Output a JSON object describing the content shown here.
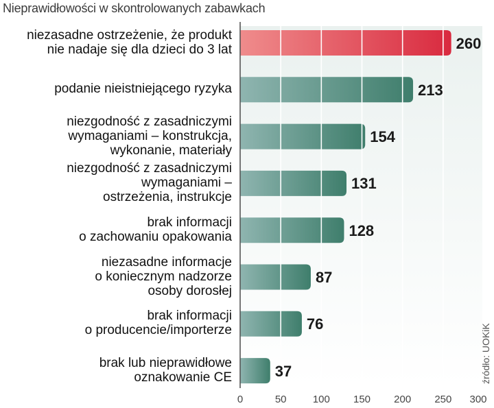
{
  "chart_data": {
    "type": "bar",
    "orientation": "horizontal",
    "title": "Nieprawidłowości w skontrolowanych zabawkach",
    "categories": [
      [
        "niezasadne ostrzeżenie, że produkt",
        "nie nadaje się dla dzieci do 3 lat"
      ],
      [
        "podanie nieistniejącego ryzyka"
      ],
      [
        "niezgodność z zasadniczymi",
        "wymaganiami – konstrukcja,",
        "wykonanie, materiały"
      ],
      [
        "niezgodność z zasadniczymi",
        "wymaganiami –",
        "ostrzeżenia, instrukcje"
      ],
      [
        "brak informacji",
        "o zachowaniu opakowania"
      ],
      [
        "niezasadne informacje",
        "o koniecznym nadzorze",
        "osoby dorosłej"
      ],
      [
        "brak informacji",
        "o producencie/importerze"
      ],
      [
        "brak lub nieprawidłowe",
        "oznakowanie CE"
      ]
    ],
    "values": [
      260,
      213,
      154,
      131,
      128,
      87,
      76,
      37
    ],
    "value_labels": [
      "260",
      "213",
      "154",
      "131",
      "128",
      "87",
      "76",
      "37"
    ],
    "xlim": [
      0,
      300
    ],
    "xticks": [
      0,
      50,
      100,
      150,
      200,
      250,
      300
    ],
    "xtick_labels": [
      "0",
      "50",
      "100",
      "150",
      "200",
      "250",
      "300"
    ],
    "grid": true,
    "highlight_index": 0,
    "source": "źródło: UOKiK",
    "colors": {
      "highlight_start": "#ef8c8c",
      "highlight_end": "#d92a3f",
      "bar_start": "#8fb5b0",
      "bar_end": "#3f7e6c",
      "plot_bg_top": "#eaf1ef",
      "plot_bg_bottom": "#ffffff",
      "grid": "#ffffff",
      "axis": "#555555"
    }
  }
}
